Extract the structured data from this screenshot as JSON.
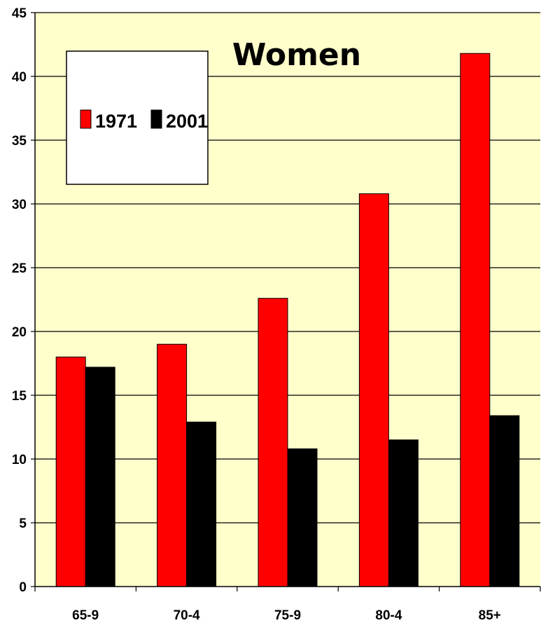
{
  "chart_data": {
    "type": "bar",
    "title": "Women",
    "categories": [
      "65-9",
      "70-4",
      "75-9",
      "80-4",
      "85+"
    ],
    "series": [
      {
        "name": "1971",
        "values": [
          18.0,
          19.0,
          22.6,
          30.8,
          41.8
        ],
        "color": "#ff0000"
      },
      {
        "name": "2001",
        "values": [
          17.2,
          12.9,
          10.8,
          11.5,
          13.4
        ],
        "color": "#000000"
      }
    ],
    "ylim": [
      0,
      45
    ],
    "yticks": [
      0,
      5,
      10,
      15,
      20,
      25,
      30,
      35,
      40,
      45
    ],
    "xlabel": "",
    "ylabel": "",
    "grid": true,
    "legend": "top-left",
    "plot_background": "#ffffcc"
  }
}
